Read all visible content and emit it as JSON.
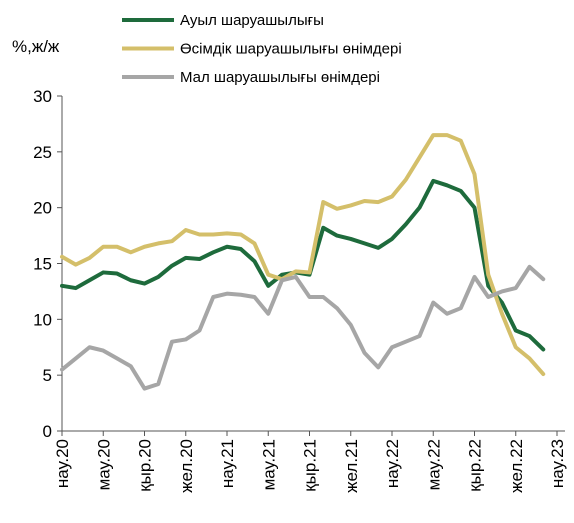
{
  "chart_data": {
    "type": "line",
    "y_label": "%,ж/ж",
    "categories": [
      "нау.20",
      null,
      null,
      "мау.20",
      null,
      null,
      "қыр.20",
      null,
      null,
      "жел.20",
      null,
      null,
      "нау.21",
      null,
      null,
      "мау.21",
      null,
      null,
      "қыр.21",
      null,
      null,
      "жел.21",
      null,
      null,
      "нау.22",
      null,
      null,
      "мау.22",
      null,
      null,
      "қыр.22",
      null,
      null,
      "жел.22",
      null,
      null,
      "нау.23"
    ],
    "series": [
      {
        "name": "Ауыл шаруашылығы",
        "color": "#1e6b3c",
        "values": [
          13.0,
          12.8,
          13.5,
          14.2,
          14.1,
          13.5,
          13.2,
          13.8,
          14.8,
          15.5,
          15.4,
          16.0,
          16.5,
          16.3,
          15.2,
          13.0,
          14.0,
          14.2,
          14.0,
          18.2,
          17.5,
          17.2,
          16.8,
          16.4,
          17.2,
          18.5,
          20.0,
          22.4,
          22.0,
          21.5,
          20.0,
          13.0,
          11.5,
          9.0,
          8.5,
          7.3,
          null
        ]
      },
      {
        "name": "Өсімдік шаруашылығы өнімдері",
        "color": "#d4bf6a",
        "values": [
          15.6,
          14.9,
          15.5,
          16.5,
          16.5,
          16.0,
          16.5,
          16.8,
          17.0,
          18.0,
          17.6,
          17.6,
          17.7,
          17.6,
          16.8,
          14.0,
          13.6,
          14.3,
          14.2,
          20.5,
          19.9,
          20.2,
          20.6,
          20.5,
          21.0,
          22.5,
          24.5,
          26.5,
          26.5,
          26.0,
          23.0,
          14.0,
          10.5,
          7.5,
          6.5,
          5.1,
          null
        ]
      },
      {
        "name": "Мал шаруашылығы өнімдері",
        "color": "#a6a6a6",
        "values": [
          5.5,
          6.5,
          7.5,
          7.2,
          6.5,
          5.8,
          3.8,
          4.2,
          8.0,
          8.2,
          9.0,
          12.0,
          12.3,
          12.2,
          12.0,
          10.5,
          13.5,
          13.8,
          12.0,
          12.0,
          11.0,
          9.5,
          7.0,
          5.7,
          7.5,
          8.0,
          8.5,
          11.5,
          10.5,
          11.0,
          13.8,
          12.0,
          12.5,
          12.8,
          14.7,
          13.6,
          null
        ]
      }
    ],
    "ylim": [
      0,
      30
    ],
    "yticks": [
      0,
      5,
      10,
      15,
      20,
      25,
      30
    ],
    "legend": "top"
  }
}
